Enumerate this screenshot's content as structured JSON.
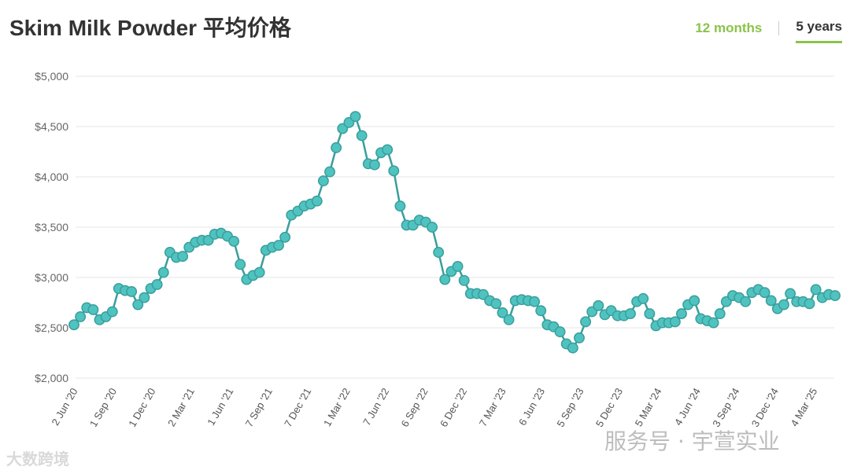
{
  "header": {
    "title": "Skim Milk Powder 平均价格",
    "tabs": [
      {
        "label": "12 months",
        "active": false
      },
      {
        "label": "5 years",
        "active": true
      }
    ]
  },
  "watermarks": {
    "left": "大数跨境",
    "right": "服务号 · 宇萱实业"
  },
  "colors": {
    "line": "#3a9e9b",
    "marker_fill": "#4fc3c0",
    "grid": "#e6e6e6",
    "accent": "#8bc34a"
  },
  "chart_data": {
    "type": "line",
    "title": "Skim Milk Powder 平均价格",
    "xlabel": "",
    "ylabel": "",
    "ylim": [
      2000,
      5000
    ],
    "yticks": [
      2000,
      2500,
      3000,
      3500,
      4000,
      4500,
      5000
    ],
    "ytick_labels": [
      "$2,000",
      "$2,500",
      "$3,000",
      "$3,500",
      "$4,000",
      "$4,500",
      "$5,000"
    ],
    "xtick_labels": [
      "2 Jun '20",
      "1 Sep '20",
      "1 Dec '20",
      "2 Mar '21",
      "1 Jun '21",
      "7 Sep '21",
      "7 Dec '21",
      "1 Mar '22",
      "7 Jun '22",
      "6 Sep '22",
      "6 Dec '22",
      "7 Mar '23",
      "6 Jun '23",
      "5 Sep '23",
      "5 Dec '23",
      "5 Mar '24",
      "4 Jun '24",
      "3 Sep '24",
      "3 Dec '24",
      "4 Mar '25"
    ],
    "grid": true,
    "legend": "none",
    "series": [
      {
        "values": [
          2530,
          2610,
          2700,
          2680,
          2580,
          2610,
          2660,
          2890,
          2870,
          2860,
          2730,
          2800,
          2890,
          2930,
          3050,
          3250,
          3200,
          3210,
          3300,
          3350,
          3370,
          3370,
          3430,
          3440,
          3410,
          3360,
          3130,
          2980,
          3020,
          3050,
          3270,
          3300,
          3320,
          3400,
          3620,
          3660,
          3710,
          3730,
          3760,
          3960,
          4050,
          4290,
          4480,
          4540,
          4600,
          4410,
          4130,
          4120,
          4240,
          4270,
          4060,
          3710,
          3520,
          3520,
          3570,
          3550,
          3500,
          3250,
          2980,
          3060,
          3110,
          2970,
          2840,
          2840,
          2830,
          2770,
          2740,
          2650,
          2580,
          2770,
          2780,
          2770,
          2760,
          2670,
          2530,
          2510,
          2460,
          2340,
          2300,
          2400,
          2560,
          2660,
          2720,
          2630,
          2670,
          2620,
          2620,
          2640,
          2760,
          2790,
          2640,
          2520,
          2550,
          2550,
          2560,
          2640,
          2730,
          2770,
          2590,
          2570,
          2550,
          2640,
          2760,
          2820,
          2800,
          2760,
          2850,
          2880,
          2850,
          2770,
          2690,
          2730,
          2840,
          2760,
          2760,
          2740,
          2880,
          2800,
          2830,
          2820
        ]
      }
    ]
  }
}
